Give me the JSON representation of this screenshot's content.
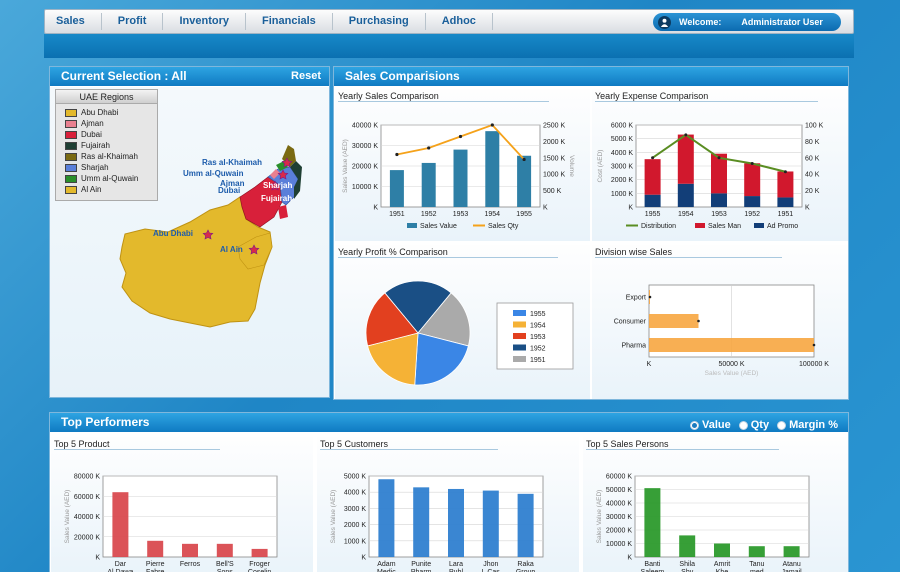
{
  "nav": {
    "items": [
      "Sales",
      "Profit",
      "Inventory",
      "Financials",
      "Purchasing",
      "Adhoc"
    ],
    "welcome_label": "Welcome:",
    "user_name": "Administrator User"
  },
  "current_selection": {
    "title": "Current Selection : All",
    "reset_label": "Reset",
    "legend_title": "UAE Regions",
    "regions": [
      {
        "name": "Abu Dhabi",
        "color": "#e3b92c"
      },
      {
        "name": "Ajman",
        "color": "#e9808f"
      },
      {
        "name": "Dubai",
        "color": "#d8203a"
      },
      {
        "name": "Fujairah",
        "color": "#1f3f33"
      },
      {
        "name": "Ras al-Khaimah",
        "color": "#7a6a12"
      },
      {
        "name": "Sharjah",
        "color": "#5a7fd9"
      },
      {
        "name": "Umm al-Quwain",
        "color": "#2a8f2a"
      },
      {
        "name": "Al Ain",
        "color": "#e3b92c"
      }
    ],
    "city_labels": {
      "ras": "Ras al-Khaimah",
      "umm": "Umm al-Quwain",
      "ajman": "Ajman",
      "sharjah": "Sharjah",
      "dubai": "Dubai",
      "fujairah": "Fujairah",
      "abudhabi": "Abu Dhabi",
      "alain": "Al Ain"
    }
  },
  "sales_comparisons": {
    "title": "Sales Comparisions",
    "yearly_sales_title": "Yearly Sales Comparison",
    "yearly_expense_title": "Yearly Expense Comparison",
    "yearly_profit_title": "Yearly Profit % Comparison",
    "division_title": "Division wise Sales"
  },
  "top_performers": {
    "title": "Top Performers",
    "options": [
      "Value",
      "Qty",
      "Margin %"
    ],
    "selected_option": "Value",
    "product_title": "Top 5 Product",
    "customer_title": "Top 5 Customers",
    "sales_person_title": "Top 5 Sales Persons"
  },
  "chart_data": [
    {
      "type": "bar",
      "title": "Yearly Sales Comparison",
      "categories": [
        "1951",
        "1952",
        "1953",
        "1954",
        "1955"
      ],
      "ylabel": "Sales Value (AED)",
      "y2label": "Volume",
      "ylim": [
        0,
        40000
      ],
      "y2lim": [
        0,
        2500
      ],
      "yticks": [
        "K",
        "10000 K",
        "20000 K",
        "30000 K",
        "40000 K"
      ],
      "y2ticks": [
        "K",
        "500 K",
        "1000 K",
        "1500 K",
        "2000 K",
        "2500 K"
      ],
      "series": [
        {
          "name": "Sales Value",
          "values": [
            18000,
            21500,
            28000,
            37000,
            25000
          ],
          "color": "#2e7fa6"
        },
        {
          "name": "Sales Qty",
          "values": [
            1600,
            1800,
            2150,
            2500,
            1450
          ],
          "color": "#f5a21a",
          "axis": "right",
          "kind": "line"
        }
      ]
    },
    {
      "type": "bar",
      "title": "Yearly Expense Comparison",
      "categories": [
        "1955",
        "1954",
        "1953",
        "1952",
        "1951"
      ],
      "ylabel": "Cost (AED)",
      "ylim": [
        0,
        6000
      ],
      "y2lim": [
        0,
        100
      ],
      "yticks": [
        "K",
        "1000 K",
        "2000 K",
        "3000 K",
        "4000 K",
        "5000 K",
        "6000 K"
      ],
      "y2ticks": [
        "K",
        "20 K",
        "40 K",
        "60 K",
        "80 K",
        "100 K"
      ],
      "series": [
        {
          "name": "Ad Promo",
          "values": [
            900,
            1700,
            1000,
            800,
            700
          ],
          "color": "#123e78"
        },
        {
          "name": "Sales Man",
          "values": [
            2600,
            3600,
            2900,
            2400,
            1900
          ],
          "color": "#d1182d"
        },
        {
          "name": "Distribution",
          "values": [
            60,
            88,
            60,
            53,
            43
          ],
          "color": "#5a8d22",
          "axis": "right",
          "kind": "line"
        }
      ]
    },
    {
      "type": "pie",
      "title": "Yearly Profit % Comparison",
      "series": [
        {
          "name": "1955",
          "value": 22,
          "color": "#3a86e6"
        },
        {
          "name": "1954",
          "value": 20,
          "color": "#f5b236"
        },
        {
          "name": "1953",
          "value": 18,
          "color": "#e2401f"
        },
        {
          "name": "1952",
          "value": 22,
          "color": "#1a4f85"
        },
        {
          "name": "1951",
          "value": 18,
          "color": "#aaaaaa"
        }
      ]
    },
    {
      "type": "bar",
      "title": "Division wise Sales",
      "orientation": "horizontal",
      "categories": [
        "Export",
        "Consumer",
        "Pharma"
      ],
      "values": [
        500,
        30000,
        100000
      ],
      "xlabel": "Sales Value (AED)",
      "xlim": [
        0,
        100000
      ],
      "xticks": [
        "K",
        "50000 K",
        "100000 K"
      ]
    },
    {
      "type": "bar",
      "title": "Top 5 Product",
      "categories": [
        "Dar Al Dawa",
        "Pierre Fabre",
        "Ferros ...",
        "Bell'S Sons",
        "Froger Coselin"
      ],
      "values": [
        64000,
        16000,
        13000,
        13000,
        8000
      ],
      "ylabel": "Sales Value (AED)",
      "ylim": [
        0,
        80000
      ],
      "yticks": [
        "K",
        "20000 K",
        "40000 K",
        "60000 K",
        "80000 K"
      ],
      "color": "#d94a4f"
    },
    {
      "type": "bar",
      "title": "Top 5 Customers",
      "categories": [
        "Adam Medic",
        "Punite Pharm",
        "Lara Publ",
        "Jhon L Cas",
        "Raka Group"
      ],
      "values": [
        4800,
        4300,
        4200,
        4100,
        3900
      ],
      "ylabel": "Sales Value (AED)",
      "ylim": [
        0,
        5000
      ],
      "yticks": [
        "K",
        "1000 K",
        "2000 K",
        "3000 K",
        "4000 K",
        "5000 K"
      ],
      "color": "#2f7fd0"
    },
    {
      "type": "bar",
      "title": "Top 5 Sales Persons",
      "categories": [
        "Banti Saleem",
        "Shila Shy",
        "Amrit Khe",
        "Tanu med",
        "Atanu Jamail"
      ],
      "values": [
        51000,
        16000,
        10000,
        8000,
        8000
      ],
      "ylabel": "Sales Value (AED)",
      "ylim": [
        0,
        60000
      ],
      "yticks": [
        "K",
        "10000 K",
        "20000 K",
        "30000 K",
        "40000 K",
        "50000 K",
        "60000 K"
      ],
      "color": "#2c9a2c"
    }
  ]
}
